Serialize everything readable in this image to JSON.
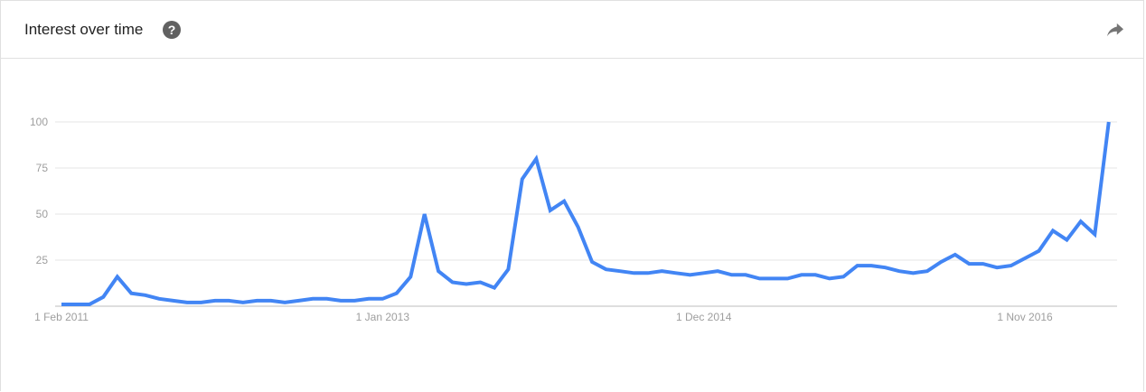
{
  "header": {
    "title": "Interest over time",
    "help_icon": "help-icon",
    "share_icon": "share-icon"
  },
  "colors": {
    "line": "#4285f4",
    "grid": "#e6e6e6",
    "axis": "#bdbdbd",
    "tick": "#9e9e9e"
  },
  "chart_data": {
    "type": "line",
    "title": "",
    "xlabel": "",
    "ylabel": "",
    "ylim": [
      0,
      100
    ],
    "yticks": [
      25,
      50,
      75,
      100
    ],
    "ytick_labels": [
      "25",
      "50",
      "75",
      "100"
    ],
    "xtick_labels": [
      "1 Feb 2011",
      "1 Jan 2013",
      "1 Dec 2014",
      "1 Nov 2016"
    ],
    "xtick_months": [
      "2011-02",
      "2013-01",
      "2014-12",
      "2016-11"
    ],
    "grid": true,
    "start_month": "2011-02",
    "end_month": "2017-05",
    "values": [
      1,
      1,
      1,
      5,
      16,
      7,
      6,
      4,
      3,
      2,
      2,
      3,
      3,
      2,
      3,
      3,
      2,
      3,
      4,
      4,
      3,
      3,
      4,
      4,
      7,
      16,
      50,
      19,
      13,
      12,
      13,
      10,
      20,
      69,
      80,
      52,
      57,
      43,
      24,
      20,
      19,
      18,
      18,
      19,
      18,
      17,
      18,
      19,
      17,
      17,
      15,
      15,
      15,
      17,
      17,
      15,
      16,
      22,
      22,
      21,
      19,
      18,
      19,
      24,
      28,
      23,
      23,
      21,
      22,
      26,
      30,
      41,
      36,
      46,
      39,
      100
    ]
  }
}
